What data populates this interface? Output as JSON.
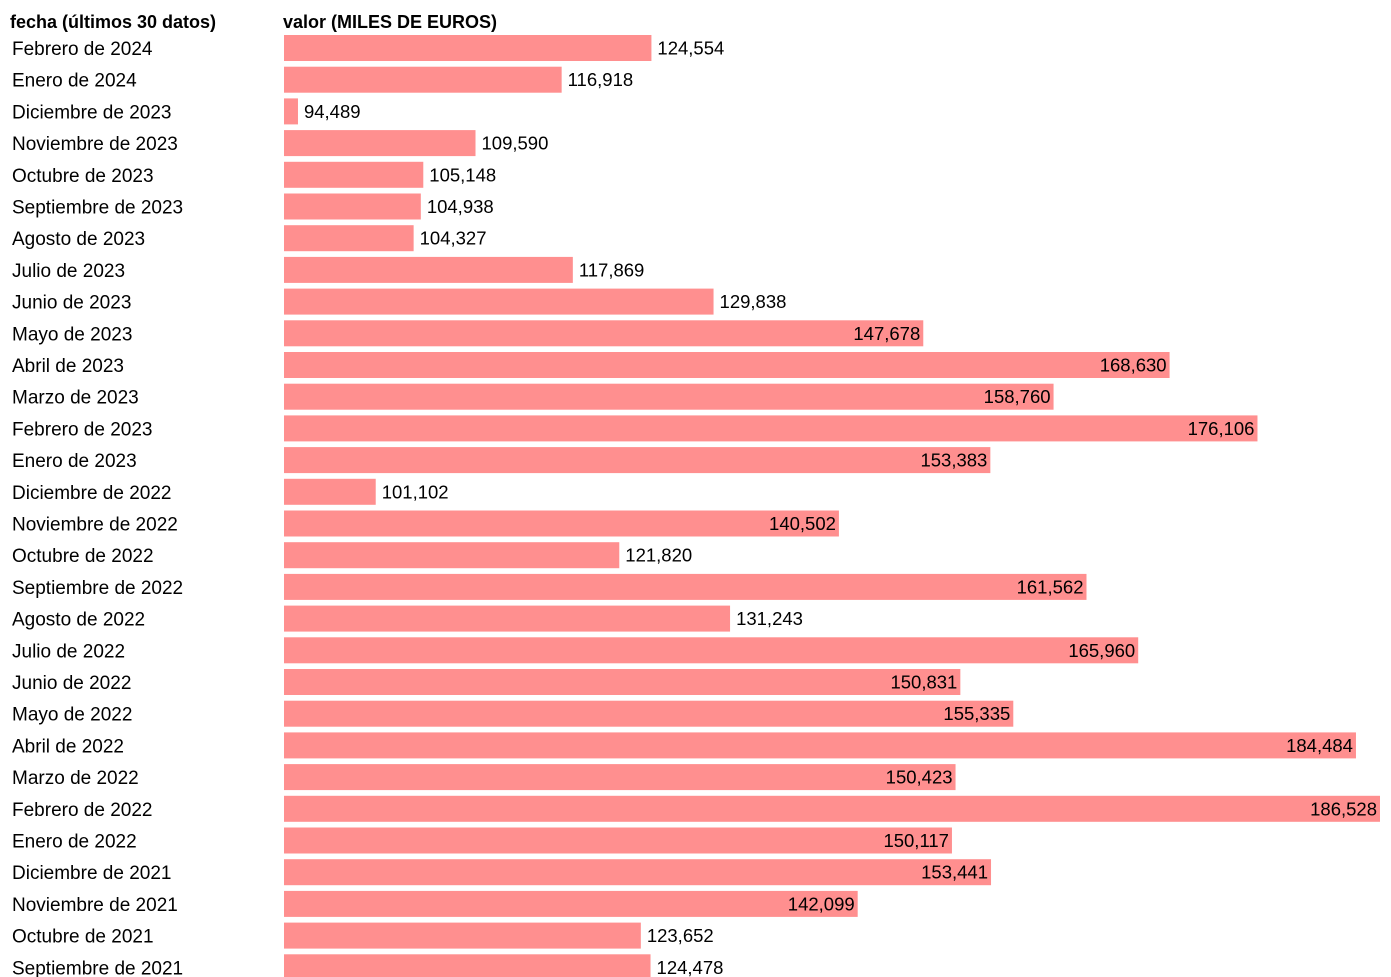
{
  "chart_data": {
    "type": "bar",
    "orientation": "horizontal",
    "category_header": "fecha (últimos 30 datos)",
    "value_header": "valor (MILES DE EUROS)",
    "bar_color": "#ff8f8f",
    "categories": [
      "Febrero de 2024",
      "Enero de 2024",
      "Diciembre de 2023",
      "Noviembre de 2023",
      "Octubre de 2023",
      "Septiembre de 2023",
      "Agosto de 2023",
      "Julio de 2023",
      "Junio de 2023",
      "Mayo de 2023",
      "Abril de 2023",
      "Marzo de 2023",
      "Febrero de 2023",
      "Enero de 2023",
      "Diciembre de 2022",
      "Noviembre de 2022",
      "Octubre de 2022",
      "Septiembre de 2022",
      "Agosto de 2022",
      "Julio de 2022",
      "Junio de 2022",
      "Mayo de 2022",
      "Abril de 2022",
      "Marzo de 2022",
      "Febrero de 2022",
      "Enero de 2022",
      "Diciembre de 2021",
      "Noviembre de 2021",
      "Octubre de 2021",
      "Septiembre de 2021"
    ],
    "values": [
      124554,
      116918,
      94489,
      109590,
      105148,
      104938,
      104327,
      117869,
      129838,
      147678,
      168630,
      158760,
      176106,
      153383,
      101102,
      140502,
      121820,
      161562,
      131243,
      165960,
      150831,
      155335,
      184484,
      150423,
      186528,
      150117,
      153441,
      142099,
      123652,
      124478
    ],
    "value_labels": [
      "124,554",
      "116,918",
      "94,489",
      "109,590",
      "105,148",
      "104,938",
      "104,327",
      "117,869",
      "129,838",
      "147,678",
      "168,630",
      "158,760",
      "176,106",
      "153,383",
      "101,102",
      "140,502",
      "121,820",
      "161,562",
      "131,243",
      "165,960",
      "150,831",
      "155,335",
      "184,484",
      "150,423",
      "186,528",
      "150,117",
      "153,441",
      "142,099",
      "123,652",
      "124,478"
    ],
    "xlim": [
      93300,
      186528
    ]
  }
}
